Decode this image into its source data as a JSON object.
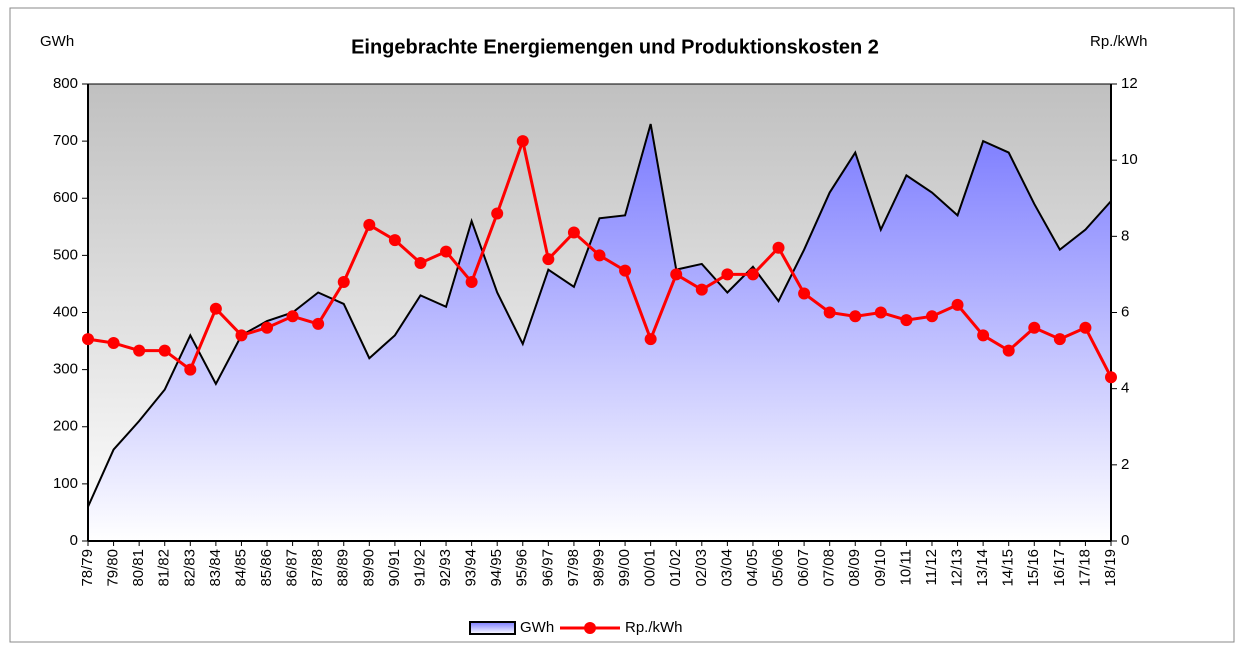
{
  "chart_data": {
    "type": "area_line",
    "title": "Eingebrachte Energiemengen und Produktionskosten 2",
    "ylabel": "GWh",
    "y2label": "Rp./kWh",
    "categories": [
      "78/79",
      "79/80",
      "80/81",
      "81/82",
      "82/83",
      "83/84",
      "84/85",
      "85/86",
      "86/87",
      "87/88",
      "88/89",
      "89/90",
      "90/91",
      "91/92",
      "92/93",
      "93/94",
      "94/95",
      "95/96",
      "96/97",
      "97/98",
      "98/99",
      "99/00",
      "00/01",
      "01/02",
      "02/03",
      "03/04",
      "04/05",
      "05/06",
      "06/07",
      "07/08",
      "08/09",
      "09/10",
      "10/11",
      "11/12",
      "12/13",
      "13/14",
      "14/15",
      "15/16",
      "16/17",
      "17/18",
      "18/19"
    ],
    "series": [
      {
        "name": "GWh",
        "type": "area",
        "color": "#7b7bff",
        "values": [
          60,
          160,
          210,
          265,
          360,
          275,
          360,
          385,
          400,
          435,
          415,
          320,
          360,
          430,
          410,
          560,
          435,
          345,
          475,
          445,
          565,
          570,
          730,
          475,
          485,
          435,
          480,
          420,
          510,
          610,
          680,
          545,
          640,
          610,
          570,
          700,
          680,
          590,
          510,
          545,
          595
        ]
      },
      {
        "name": "Rp./kWh",
        "type": "line",
        "axis": "y2",
        "color": "#ff0000",
        "values": [
          5.3,
          5.2,
          5.0,
          5.0,
          4.5,
          6.1,
          5.4,
          5.6,
          5.9,
          5.7,
          6.8,
          8.3,
          7.9,
          7.3,
          7.6,
          6.8,
          8.6,
          10.5,
          7.4,
          8.1,
          7.5,
          7.1,
          5.3,
          7.0,
          6.6,
          7.0,
          7.0,
          7.7,
          6.5,
          6.0,
          5.9,
          6.0,
          5.8,
          5.9,
          6.2,
          5.4,
          5.0,
          5.6,
          5.3,
          5.6,
          4.3
        ]
      }
    ],
    "ylim": [
      0,
      800
    ],
    "yticks": [
      0,
      100,
      200,
      300,
      400,
      500,
      600,
      700,
      800
    ],
    "y2lim": [
      0,
      12
    ],
    "y2ticks": [
      0,
      2,
      4,
      6,
      8,
      10,
      12
    ]
  }
}
